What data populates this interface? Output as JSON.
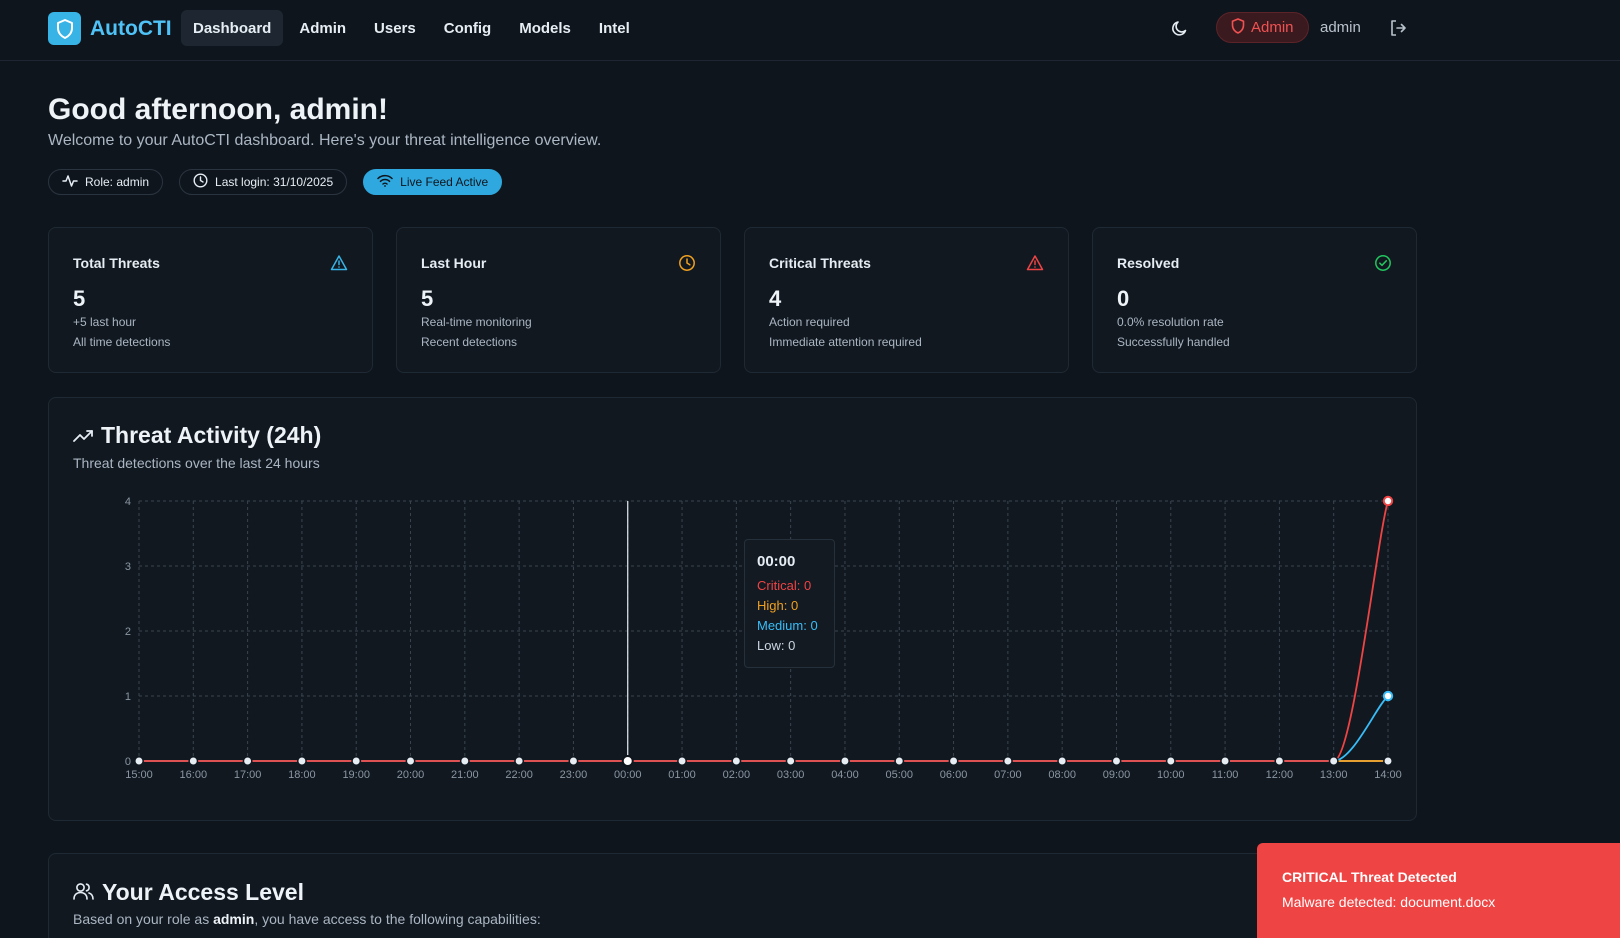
{
  "header": {
    "brand": "AutoCTI",
    "nav": [
      {
        "label": "Dashboard",
        "active": true
      },
      {
        "label": "Admin",
        "active": false
      },
      {
        "label": "Users",
        "active": false
      },
      {
        "label": "Config",
        "active": false
      },
      {
        "label": "Models",
        "active": false
      },
      {
        "label": "Intel",
        "active": false
      }
    ],
    "role_badge": "Admin",
    "username": "admin",
    "icons": {
      "theme": "moon-icon",
      "logout": "logout-icon",
      "logo": "shield-icon"
    }
  },
  "greeting": {
    "title": "Good afternoon, admin!",
    "subtitle": "Welcome to your AutoCTI dashboard. Here's your threat intelligence overview.",
    "chips": {
      "role": "Role: admin",
      "last_login": "Last login: 31/10/2025",
      "live": "Live Feed Active"
    }
  },
  "stats": [
    {
      "title": "Total Threats",
      "value": "5",
      "line1": "+5 last hour",
      "line2": "All time detections",
      "icon": "alert-triangle-icon",
      "color": "#38b3e6"
    },
    {
      "title": "Last Hour",
      "value": "5",
      "line1": "Real-time monitoring",
      "line2": "Recent detections",
      "icon": "clock-icon",
      "color": "#f0a020"
    },
    {
      "title": "Critical Threats",
      "value": "4",
      "line1": "Action required",
      "line2": "Immediate attention required",
      "icon": "alert-triangle-icon",
      "color": "#ef4444"
    },
    {
      "title": "Resolved",
      "value": "0",
      "line1": "0.0% resolution rate",
      "line2": "Successfully handled",
      "icon": "check-circle-icon",
      "color": "#22c55e"
    }
  ],
  "activity": {
    "title": "Threat Activity (24h)",
    "subtitle": "Threat detections over the last 24 hours",
    "tooltip": {
      "time": "00:00",
      "critical": "Critical: 0",
      "high": "High: 0",
      "medium": "Medium: 0",
      "low": "Low: 0"
    }
  },
  "chart_data": {
    "type": "line",
    "x": [
      "15:00",
      "16:00",
      "17:00",
      "18:00",
      "19:00",
      "20:00",
      "21:00",
      "22:00",
      "23:00",
      "00:00",
      "01:00",
      "02:00",
      "03:00",
      "04:00",
      "05:00",
      "06:00",
      "07:00",
      "08:00",
      "09:00",
      "10:00",
      "11:00",
      "12:00",
      "13:00",
      "14:00"
    ],
    "yticks": [
      0,
      1,
      2,
      3,
      4
    ],
    "ylim": [
      0,
      4
    ],
    "grid": true,
    "highlight_x": "00:00",
    "series": [
      {
        "name": "Critical",
        "color": "#ef4444",
        "values": [
          0,
          0,
          0,
          0,
          0,
          0,
          0,
          0,
          0,
          0,
          0,
          0,
          0,
          0,
          0,
          0,
          0,
          0,
          0,
          0,
          0,
          0,
          0,
          4
        ]
      },
      {
        "name": "High",
        "color": "#f0a020",
        "values": [
          0,
          0,
          0,
          0,
          0,
          0,
          0,
          0,
          0,
          0,
          0,
          0,
          0,
          0,
          0,
          0,
          0,
          0,
          0,
          0,
          0,
          0,
          0,
          0
        ]
      },
      {
        "name": "Medium",
        "color": "#38bdf8",
        "values": [
          0,
          0,
          0,
          0,
          0,
          0,
          0,
          0,
          0,
          0,
          0,
          0,
          0,
          0,
          0,
          0,
          0,
          0,
          0,
          0,
          0,
          0,
          0,
          1
        ]
      },
      {
        "name": "Low",
        "color": "#cbd5e1",
        "values": [
          0,
          0,
          0,
          0,
          0,
          0,
          0,
          0,
          0,
          0,
          0,
          0,
          0,
          0,
          0,
          0,
          0,
          0,
          0,
          0,
          0,
          0,
          0,
          0
        ]
      }
    ]
  },
  "access": {
    "title": "Your Access Level",
    "desc_prefix": "Based on your role as ",
    "desc_role": "admin",
    "desc_suffix": ", you have access to the following capabilities:"
  },
  "toast": {
    "title": "CRITICAL Threat Detected",
    "message": "Malware detected: document.docx"
  }
}
